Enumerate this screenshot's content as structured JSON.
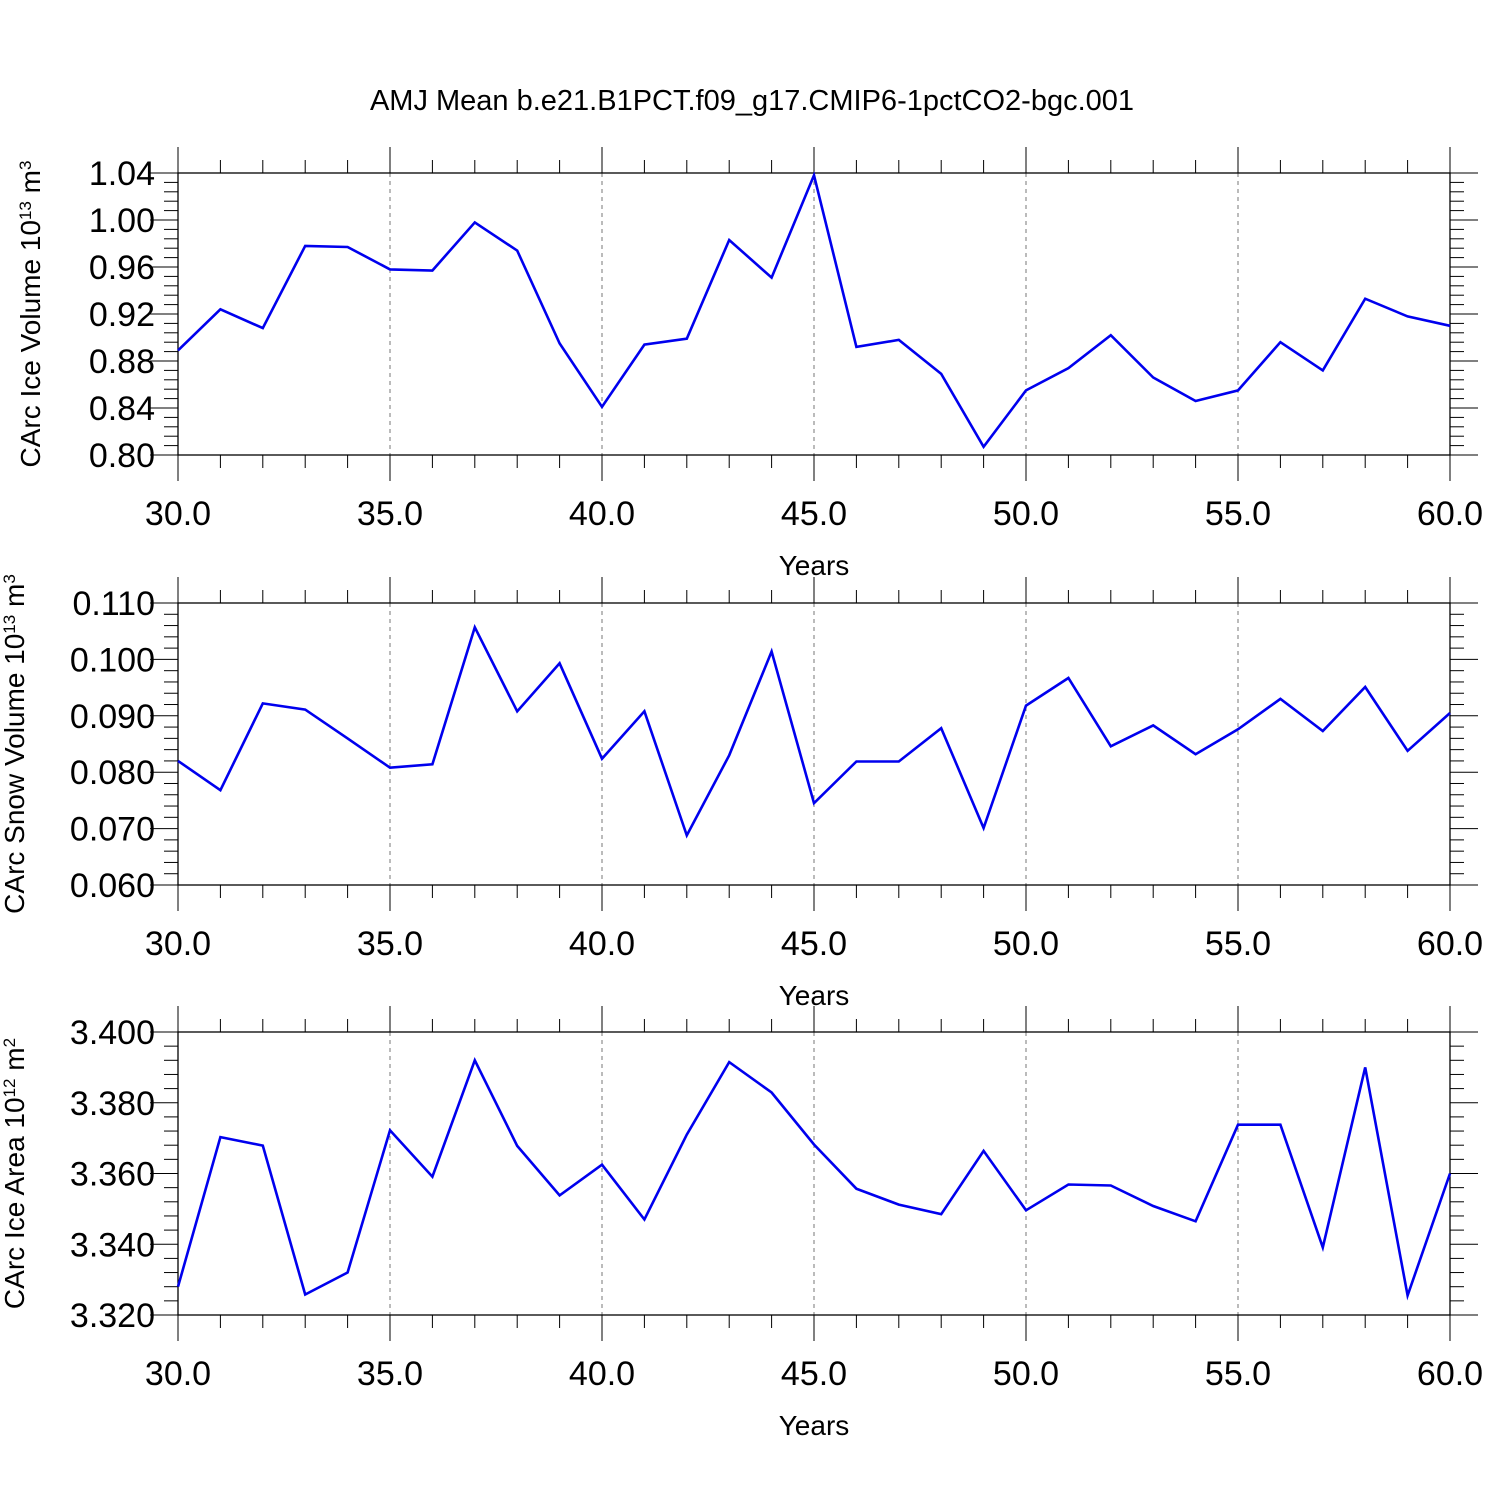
{
  "title": "AMJ Mean b.e21.B1PCT.f09_g17.CMIP6-1pctCO2-bgc.001",
  "chart_data": [
    {
      "type": "line",
      "ylabel": {
        "text": "CArc Ice Volume 10",
        "exp": "13",
        "unit": " m",
        "unit_exp": "3"
      },
      "xlabel": "Years",
      "xlim": [
        30,
        60
      ],
      "ylim": [
        0.8,
        1.04
      ],
      "xticks": [
        30,
        35,
        40,
        45,
        50,
        55,
        60
      ],
      "xtick_labels": [
        "30.0",
        "35.0",
        "40.0",
        "45.0",
        "50.0",
        "55.0",
        "60.0"
      ],
      "yticks": [
        0.8,
        0.84,
        0.88,
        0.92,
        0.96,
        1.0,
        1.04
      ],
      "ytick_labels": [
        "0.80",
        "0.84",
        "0.88",
        "0.92",
        "0.96",
        "1.00",
        "1.04"
      ],
      "grid": "vertical dashed at major x ticks",
      "series": [
        {
          "color": "#0000ee",
          "x": [
            30,
            31,
            32,
            33,
            34,
            35,
            36,
            37,
            38,
            39,
            40,
            41,
            42,
            43,
            44,
            45,
            46,
            47,
            48,
            49,
            50,
            51,
            52,
            53,
            54,
            55,
            56,
            57,
            58,
            59,
            60
          ],
          "values": [
            0.889,
            0.924,
            0.908,
            0.978,
            0.977,
            0.958,
            0.957,
            0.998,
            0.974,
            0.895,
            0.841,
            0.894,
            0.899,
            0.983,
            0.951,
            1.038,
            0.892,
            0.898,
            0.869,
            0.807,
            0.855,
            0.874,
            0.902,
            0.866,
            0.846,
            0.855,
            0.896,
            0.872,
            0.933,
            0.918,
            0.91
          ]
        }
      ]
    },
    {
      "type": "line",
      "ylabel": {
        "text": "CArc Snow Volume 10",
        "exp": "13",
        "unit": " m",
        "unit_exp": "3"
      },
      "xlabel": "Years",
      "xlim": [
        30,
        60
      ],
      "ylim": [
        0.06,
        0.11
      ],
      "xticks": [
        30,
        35,
        40,
        45,
        50,
        55,
        60
      ],
      "xtick_labels": [
        "30.0",
        "35.0",
        "40.0",
        "45.0",
        "50.0",
        "55.0",
        "60.0"
      ],
      "yticks": [
        0.06,
        0.07,
        0.08,
        0.09,
        0.1,
        0.11
      ],
      "ytick_labels": [
        "0.060",
        "0.070",
        "0.080",
        "0.090",
        "0.100",
        "0.110"
      ],
      "grid": "vertical dashed at major x ticks",
      "series": [
        {
          "color": "#0000ee",
          "x": [
            30,
            31,
            32,
            33,
            34,
            35,
            36,
            37,
            38,
            39,
            40,
            41,
            42,
            43,
            44,
            45,
            46,
            47,
            48,
            49,
            50,
            51,
            52,
            53,
            54,
            55,
            56,
            57,
            58,
            59,
            60
          ],
          "values": [
            0.082,
            0.0768,
            0.0922,
            0.0911,
            0.086,
            0.0808,
            0.0814,
            0.1057,
            0.0908,
            0.0993,
            0.0824,
            0.0908,
            0.0688,
            0.083,
            0.1014,
            0.0745,
            0.0819,
            0.0819,
            0.0878,
            0.0701,
            0.0918,
            0.0967,
            0.0846,
            0.0883,
            0.0832,
            0.0876,
            0.093,
            0.0873,
            0.0951,
            0.0838,
            0.0905
          ]
        }
      ]
    },
    {
      "type": "line",
      "ylabel": {
        "text": "CArc Ice Area 10",
        "exp": "12",
        "unit": " m",
        "unit_exp": "2"
      },
      "xlabel": "Years",
      "xlim": [
        30,
        60
      ],
      "ylim": [
        3.32,
        3.4
      ],
      "xticks": [
        30,
        35,
        40,
        45,
        50,
        55,
        60
      ],
      "xtick_labels": [
        "30.0",
        "35.0",
        "40.0",
        "45.0",
        "50.0",
        "55.0",
        "60.0"
      ],
      "yticks": [
        3.32,
        3.34,
        3.36,
        3.38,
        3.4
      ],
      "ytick_labels": [
        "3.320",
        "3.340",
        "3.360",
        "3.380",
        "3.400"
      ],
      "grid": "vertical dashed at major x ticks",
      "series": [
        {
          "color": "#0000ee",
          "x": [
            30,
            31,
            32,
            33,
            34,
            35,
            36,
            37,
            38,
            39,
            40,
            41,
            42,
            43,
            44,
            45,
            46,
            47,
            48,
            49,
            50,
            51,
            52,
            53,
            54,
            55,
            56,
            57,
            58,
            59,
            60
          ],
          "values": [
            3.328,
            3.3703,
            3.3679,
            3.3258,
            3.332,
            3.3722,
            3.3591,
            3.392,
            3.3678,
            3.3538,
            3.3625,
            3.347,
            3.371,
            3.3915,
            3.3829,
            3.3682,
            3.3557,
            3.3512,
            3.3485,
            3.3664,
            3.3496,
            3.3569,
            3.3566,
            3.3508,
            3.3465,
            3.3738,
            3.3738,
            3.3391,
            3.39,
            3.3255,
            3.36
          ]
        }
      ]
    }
  ]
}
